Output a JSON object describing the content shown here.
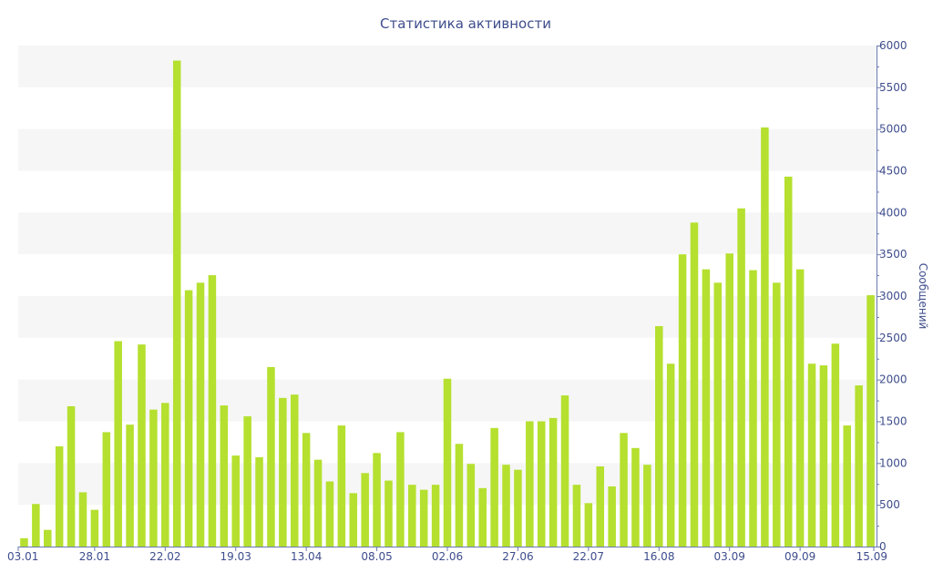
{
  "chart_data": {
    "type": "bar",
    "title": "Статистика активности",
    "xlabel": "",
    "ylabel": "Сообщений",
    "ylim": [
      0,
      6000
    ],
    "y_ticks": [
      0,
      500,
      1000,
      1500,
      2000,
      2500,
      3000,
      3500,
      4000,
      4500,
      5000,
      5500,
      6000
    ],
    "y_axis_side": "right",
    "grid": "alternating horizontal bands",
    "legend": "none",
    "x_tick_labels": [
      {
        "label": "03.01",
        "index": 0
      },
      {
        "label": "28.01",
        "index": 6
      },
      {
        "label": "22.02",
        "index": 12
      },
      {
        "label": "19.03",
        "index": 18
      },
      {
        "label": "13.04",
        "index": 24
      },
      {
        "label": "08.05",
        "index": 30
      },
      {
        "label": "02.06",
        "index": 36
      },
      {
        "label": "27.06",
        "index": 42
      },
      {
        "label": "22.07",
        "index": 48
      },
      {
        "label": "16.08",
        "index": 54
      },
      {
        "label": "03.09",
        "index": 60
      },
      {
        "label": "09.09",
        "index": 66
      },
      {
        "label": "15.09",
        "index": 72
      }
    ],
    "values": [
      100,
      510,
      200,
      1200,
      1680,
      650,
      440,
      1370,
      2460,
      1460,
      2420,
      1640,
      1720,
      5820,
      3070,
      3160,
      3250,
      1690,
      1090,
      1560,
      1070,
      2150,
      1780,
      1820,
      1360,
      1040,
      780,
      1450,
      640,
      880,
      1120,
      790,
      1370,
      740,
      680,
      740,
      2010,
      1230,
      990,
      700,
      1420,
      980,
      920,
      1500,
      1500,
      1540,
      1810,
      740,
      520,
      960,
      720,
      1360,
      1180,
      980,
      2640,
      2190,
      3500,
      3880,
      3320,
      3160,
      3510,
      4050,
      3310,
      5020,
      3160,
      4430,
      3320,
      2190,
      2170,
      2430,
      1450,
      1930,
      3010
    ],
    "colors": {
      "bar": "#b5e02f",
      "band": "#f6f6f6",
      "text": "#3e4d8c",
      "axis": "#6b7ab0"
    }
  }
}
